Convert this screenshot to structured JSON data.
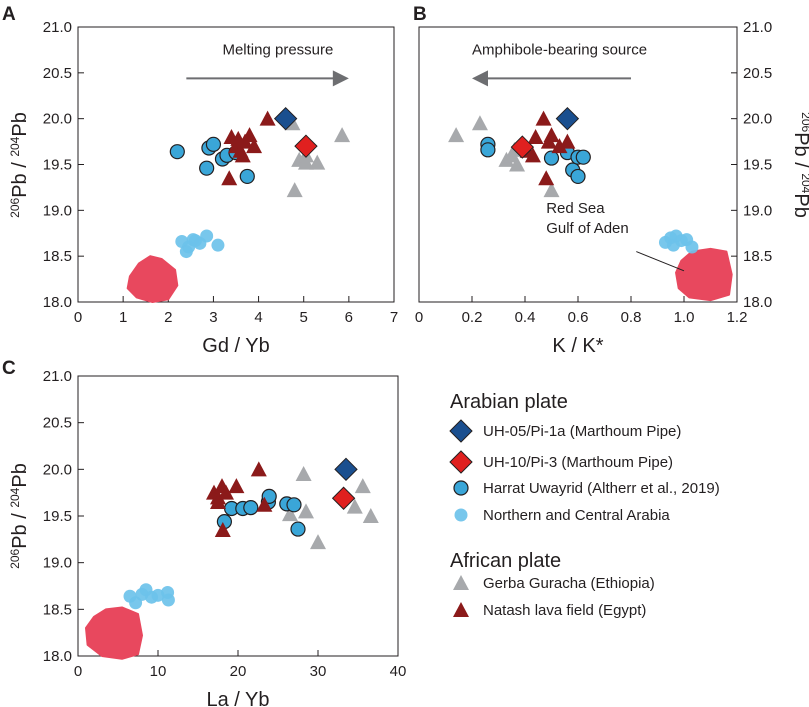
{
  "colors": {
    "uh05": "#1a4f8f",
    "uh10": "#e0201f",
    "harrat": "#3aa6d8",
    "northern": "#6cc2ea",
    "gerba": "#a7a9ac",
    "natash": "#8b1a1a",
    "redsea": "#e8485e",
    "arrow": "#6d6e71"
  },
  "chart_data": [
    {
      "panel": "A",
      "type": "scatter",
      "xlabel": "Gd / Yb",
      "ylabel": "206Pb / 204Pb",
      "xlim": [
        0,
        7
      ],
      "ylim": [
        18.0,
        21.0
      ],
      "xticks": [
        0,
        1,
        2,
        3,
        4,
        5,
        6,
        7
      ],
      "yticks": [
        18.0,
        18.5,
        19.0,
        19.5,
        20.0,
        20.5,
        21.0
      ],
      "ytick_labels": [
        "18.0",
        "18.5",
        "19.0",
        "19.5",
        "20.0",
        "20.5",
        "21.0"
      ],
      "annotation": {
        "text": "Melting pressure",
        "arrow_from": [
          2.4,
          20.44
        ],
        "arrow_to": [
          6.0,
          20.44
        ],
        "text_at": [
          3.2,
          20.7
        ]
      },
      "field": {
        "name": "Red Sea Gulf of Aden",
        "polygon": [
          [
            1.15,
            18.28
          ],
          [
            1.35,
            18.42
          ],
          [
            1.6,
            18.5
          ],
          [
            1.85,
            18.47
          ],
          [
            2.15,
            18.35
          ],
          [
            2.2,
            18.18
          ],
          [
            2.0,
            18.03
          ],
          [
            1.65,
            18.0
          ],
          [
            1.3,
            18.05
          ],
          [
            1.1,
            18.15
          ]
        ]
      },
      "series": [
        {
          "name": "UH-05/Pi-1a (Marthoum Pipe)",
          "points": [
            [
              4.6,
              20.0
            ]
          ]
        },
        {
          "name": "UH-10/Pi-3 (Marthoum Pipe)",
          "points": [
            [
              5.05,
              19.7
            ]
          ]
        },
        {
          "name": "Harrat Uwayrid (Altherr et al., 2019)",
          "points": [
            [
              2.2,
              19.64
            ],
            [
              2.85,
              19.46
            ],
            [
              2.9,
              19.68
            ],
            [
              3.0,
              19.72
            ],
            [
              3.2,
              19.56
            ],
            [
              3.3,
              19.6
            ],
            [
              3.5,
              19.63
            ],
            [
              3.75,
              19.37
            ]
          ]
        },
        {
          "name": "Northern and Central Arabia",
          "points": [
            [
              2.3,
              18.66
            ],
            [
              2.45,
              18.6
            ],
            [
              2.55,
              18.68
            ],
            [
              2.7,
              18.64
            ],
            [
              2.85,
              18.72
            ],
            [
              3.1,
              18.62
            ],
            [
              2.6,
              18.67
            ],
            [
              2.4,
              18.55
            ]
          ]
        },
        {
          "name": "Gerba Guracha (Ethiopia)",
          "points": [
            [
              4.75,
              19.95
            ],
            [
              4.9,
              19.55
            ],
            [
              5.05,
              19.6
            ],
            [
              5.3,
              19.52
            ],
            [
              4.8,
              19.22
            ],
            [
              5.85,
              19.82
            ],
            [
              5.05,
              19.52
            ]
          ]
        },
        {
          "name": "Natash lava field (Egypt)",
          "points": [
            [
              3.4,
              19.8
            ],
            [
              3.5,
              19.7
            ],
            [
              3.6,
              19.65
            ],
            [
              3.7,
              19.75
            ],
            [
              3.8,
              19.82
            ],
            [
              4.2,
              20.0
            ],
            [
              3.35,
              19.35
            ],
            [
              3.65,
              19.6
            ],
            [
              3.9,
              19.7
            ],
            [
              3.55,
              19.78
            ]
          ]
        }
      ]
    },
    {
      "panel": "B",
      "type": "scatter",
      "xlabel": "K / K*",
      "ylabel": "206Pb / 204Pb",
      "xlim": [
        0,
        1.2
      ],
      "ylim": [
        18.0,
        21.0
      ],
      "xticks": [
        0,
        0.2,
        0.4,
        0.6,
        0.8,
        1.0,
        1.2
      ],
      "xtick_labels": [
        "0",
        "0.2",
        "0.4",
        "0.6",
        "0.8",
        "1.0",
        "1.2"
      ],
      "yticks": [
        18.0,
        18.5,
        19.0,
        19.5,
        20.0,
        20.5,
        21.0
      ],
      "ytick_labels": [
        "18.0",
        "18.5",
        "19.0",
        "19.5",
        "20.0",
        "20.5",
        "21.0"
      ],
      "annotation": {
        "text": "Amphibole-bearing source",
        "arrow_from": [
          0.8,
          20.44
        ],
        "arrow_to": [
          0.2,
          20.44
        ],
        "text_at": [
          0.2,
          20.7
        ]
      },
      "field_label": {
        "lines": [
          "Red Sea",
          "Gulf of Aden"
        ],
        "text_at": [
          0.48,
          18.97
        ],
        "leader_from": [
          0.82,
          18.55
        ],
        "leader_to": [
          1.0,
          18.34
        ]
      },
      "field": {
        "name": "Red Sea Gulf of Aden",
        "polygon": [
          [
            0.97,
            18.32
          ],
          [
            0.99,
            18.45
          ],
          [
            1.03,
            18.55
          ],
          [
            1.1,
            18.58
          ],
          [
            1.16,
            18.55
          ],
          [
            1.18,
            18.3
          ],
          [
            1.17,
            18.08
          ],
          [
            1.1,
            18.02
          ],
          [
            1.02,
            18.05
          ],
          [
            0.98,
            18.15
          ]
        ]
      },
      "series": [
        {
          "name": "UH-05/Pi-1a (Marthoum Pipe)",
          "points": [
            [
              0.56,
              20.0
            ]
          ]
        },
        {
          "name": "UH-10/Pi-3 (Marthoum Pipe)",
          "points": [
            [
              0.39,
              19.69
            ]
          ]
        },
        {
          "name": "Harrat Uwayrid (Altherr et al., 2019)",
          "points": [
            [
              0.26,
              19.72
            ],
            [
              0.26,
              19.66
            ],
            [
              0.5,
              19.57
            ],
            [
              0.56,
              19.63
            ],
            [
              0.58,
              19.44
            ],
            [
              0.6,
              19.58
            ],
            [
              0.62,
              19.58
            ],
            [
              0.6,
              19.37
            ]
          ]
        },
        {
          "name": "Northern and Central Arabia",
          "points": [
            [
              0.93,
              18.65
            ],
            [
              0.95,
              18.7
            ],
            [
              0.97,
              18.72
            ],
            [
              0.99,
              18.67
            ],
            [
              1.01,
              18.68
            ],
            [
              0.96,
              18.62
            ],
            [
              1.03,
              18.6
            ]
          ]
        },
        {
          "name": "Gerba Guracha (Ethiopia)",
          "points": [
            [
              0.14,
              19.82
            ],
            [
              0.23,
              19.95
            ],
            [
              0.33,
              19.55
            ],
            [
              0.35,
              19.6
            ],
            [
              0.37,
              19.5
            ],
            [
              0.36,
              19.66
            ],
            [
              0.5,
              19.22
            ]
          ]
        },
        {
          "name": "Natash lava field (Egypt)",
          "points": [
            [
              0.41,
              19.65
            ],
            [
              0.44,
              19.8
            ],
            [
              0.47,
              20.0
            ],
            [
              0.49,
              19.75
            ],
            [
              0.5,
              19.82
            ],
            [
              0.53,
              19.7
            ],
            [
              0.56,
              19.75
            ],
            [
              0.48,
              19.35
            ],
            [
              0.43,
              19.6
            ]
          ]
        }
      ]
    },
    {
      "panel": "C",
      "type": "scatter",
      "xlabel": "La / Yb",
      "ylabel": "206Pb / 204Pb",
      "xlim": [
        0,
        40
      ],
      "ylim": [
        18.0,
        21.0
      ],
      "xticks": [
        0,
        10,
        20,
        30,
        40
      ],
      "yticks": [
        18.0,
        18.5,
        19.0,
        19.5,
        20.0,
        20.5,
        21.0
      ],
      "ytick_labels": [
        "18.0",
        "18.5",
        "19.0",
        "19.5",
        "20.0",
        "20.5",
        "21.0"
      ],
      "field": {
        "name": "Red Sea Gulf of Aden",
        "polygon": [
          [
            1.0,
            18.3
          ],
          [
            2.0,
            18.42
          ],
          [
            3.5,
            18.5
          ],
          [
            5.5,
            18.52
          ],
          [
            7.5,
            18.45
          ],
          [
            8.0,
            18.22
          ],
          [
            7.5,
            18.02
          ],
          [
            5.5,
            17.97
          ],
          [
            3.0,
            18.0
          ],
          [
            1.2,
            18.12
          ]
        ]
      },
      "series": [
        {
          "name": "UH-05/Pi-1a (Marthoum Pipe)",
          "points": [
            [
              33.5,
              20.0
            ]
          ]
        },
        {
          "name": "UH-10/Pi-3 (Marthoum Pipe)",
          "points": [
            [
              33.2,
              19.69
            ]
          ]
        },
        {
          "name": "Harrat Uwayrid (Altherr et al., 2019)",
          "points": [
            [
              18.3,
              19.44
            ],
            [
              19.2,
              19.58
            ],
            [
              20.6,
              19.58
            ],
            [
              21.6,
              19.59
            ],
            [
              23.8,
              19.65
            ],
            [
              23.9,
              19.71
            ],
            [
              26.1,
              19.63
            ],
            [
              27.0,
              19.62
            ],
            [
              27.5,
              19.36
            ]
          ]
        },
        {
          "name": "Northern and Central Arabia",
          "points": [
            [
              6.5,
              18.64
            ],
            [
              7.2,
              18.57
            ],
            [
              8.0,
              18.66
            ],
            [
              8.5,
              18.71
            ],
            [
              9.2,
              18.63
            ],
            [
              10.0,
              18.65
            ],
            [
              11.2,
              18.68
            ],
            [
              11.3,
              18.6
            ]
          ]
        },
        {
          "name": "Gerba Guracha (Ethiopia)",
          "points": [
            [
              26.5,
              19.52
            ],
            [
              28.2,
              19.95
            ],
            [
              28.5,
              19.55
            ],
            [
              30.0,
              19.22
            ],
            [
              34.6,
              19.6
            ],
            [
              35.6,
              19.82
            ],
            [
              36.6,
              19.5
            ]
          ]
        },
        {
          "name": "Natash lava field (Egypt)",
          "points": [
            [
              17.0,
              19.75
            ],
            [
              17.5,
              19.7
            ],
            [
              18.0,
              19.82
            ],
            [
              18.5,
              19.75
            ],
            [
              19.8,
              19.82
            ],
            [
              22.6,
              20.0
            ],
            [
              23.3,
              19.62
            ],
            [
              18.1,
              19.35
            ],
            [
              17.5,
              19.65
            ]
          ]
        }
      ]
    }
  ],
  "legend": {
    "arabian_header": "Arabian plate",
    "african_header": "African plate",
    "items": [
      {
        "key": "uh05",
        "label": "UH-05/Pi-1a (Marthoum Pipe)"
      },
      {
        "key": "uh10",
        "label": "UH-10/Pi-3   (Marthoum Pipe)"
      },
      {
        "key": "harrat",
        "label": "Harrat Uwayrid (Altherr et al., 2019)"
      },
      {
        "key": "northern",
        "label": "Northern and Central Arabia"
      },
      {
        "key": "gerba",
        "label": "Gerba Guracha (Ethiopia)"
      },
      {
        "key": "natash",
        "label": "Natash lava field (Egypt)"
      }
    ]
  }
}
